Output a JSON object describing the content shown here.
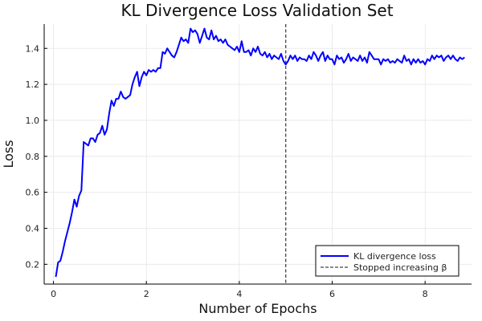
{
  "chart_data": {
    "type": "line",
    "title": "KL Divergence Loss Validation Set",
    "xlabel": "Number of Epochs",
    "ylabel": "Loss",
    "xlim": [
      -0.2,
      9.0
    ],
    "ylim": [
      0.09,
      1.535
    ],
    "xticks": [
      0,
      2,
      4,
      6,
      8
    ],
    "yticks": [
      0.2,
      0.4,
      0.6,
      0.8,
      1.0,
      1.2,
      1.4
    ],
    "ytick_labels": [
      "0.2",
      "0.4",
      "0.6",
      "0.8",
      "1.0",
      "1.2",
      "1.4"
    ],
    "grid": true,
    "legend_position": "bottom-right",
    "series": [
      {
        "name": "KL divergence loss",
        "color": "#0000ff",
        "style": "solid",
        "x": [
          0.05,
          0.1,
          0.15,
          0.2,
          0.25,
          0.3,
          0.35,
          0.4,
          0.45,
          0.5,
          0.55,
          0.6,
          0.65,
          0.7,
          0.75,
          0.8,
          0.85,
          0.9,
          0.95,
          1.0,
          1.05,
          1.1,
          1.15,
          1.2,
          1.25,
          1.3,
          1.35,
          1.4,
          1.45,
          1.5,
          1.55,
          1.6,
          1.65,
          1.7,
          1.75,
          1.8,
          1.85,
          1.9,
          1.95,
          2.0,
          2.05,
          2.1,
          2.15,
          2.2,
          2.25,
          2.3,
          2.35,
          2.4,
          2.45,
          2.5,
          2.55,
          2.6,
          2.65,
          2.7,
          2.75,
          2.8,
          2.85,
          2.9,
          2.95,
          3.0,
          3.05,
          3.1,
          3.15,
          3.2,
          3.25,
          3.3,
          3.35,
          3.4,
          3.45,
          3.5,
          3.55,
          3.6,
          3.65,
          3.7,
          3.75,
          3.8,
          3.85,
          3.9,
          3.95,
          4.0,
          4.05,
          4.1,
          4.15,
          4.2,
          4.25,
          4.3,
          4.35,
          4.4,
          4.45,
          4.5,
          4.55,
          4.6,
          4.65,
          4.7,
          4.75,
          4.8,
          4.85,
          4.9,
          4.95,
          5.0,
          5.05,
          5.1,
          5.15,
          5.2,
          5.25,
          5.3,
          5.35,
          5.4,
          5.45,
          5.5,
          5.55,
          5.6,
          5.65,
          5.7,
          5.75,
          5.8,
          5.85,
          5.9,
          5.95,
          6.0,
          6.05,
          6.1,
          6.15,
          6.2,
          6.25,
          6.3,
          6.35,
          6.4,
          6.45,
          6.5,
          6.55,
          6.6,
          6.65,
          6.7,
          6.75,
          6.8,
          6.85,
          6.9,
          6.95,
          7.0,
          7.05,
          7.1,
          7.15,
          7.2,
          7.25,
          7.3,
          7.35,
          7.4,
          7.45,
          7.5,
          7.55,
          7.6,
          7.65,
          7.7,
          7.75,
          7.8,
          7.85,
          7.9,
          7.95,
          8.0,
          8.05,
          8.1,
          8.15,
          8.2,
          8.25,
          8.3,
          8.35,
          8.4,
          8.45,
          8.5,
          8.55,
          8.6,
          8.65,
          8.7,
          8.75,
          8.8,
          8.85
        ],
        "y": [
          0.13,
          0.21,
          0.22,
          0.27,
          0.33,
          0.38,
          0.43,
          0.49,
          0.56,
          0.52,
          0.58,
          0.61,
          0.88,
          0.87,
          0.86,
          0.9,
          0.9,
          0.88,
          0.92,
          0.93,
          0.97,
          0.92,
          0.95,
          1.04,
          1.11,
          1.08,
          1.12,
          1.12,
          1.16,
          1.13,
          1.12,
          1.13,
          1.14,
          1.2,
          1.24,
          1.27,
          1.19,
          1.24,
          1.27,
          1.25,
          1.28,
          1.27,
          1.28,
          1.27,
          1.29,
          1.29,
          1.38,
          1.37,
          1.4,
          1.38,
          1.36,
          1.35,
          1.38,
          1.42,
          1.46,
          1.44,
          1.45,
          1.43,
          1.51,
          1.49,
          1.5,
          1.48,
          1.43,
          1.47,
          1.51,
          1.46,
          1.45,
          1.5,
          1.45,
          1.47,
          1.44,
          1.45,
          1.43,
          1.45,
          1.42,
          1.41,
          1.4,
          1.39,
          1.41,
          1.38,
          1.44,
          1.38,
          1.38,
          1.39,
          1.36,
          1.4,
          1.38,
          1.41,
          1.37,
          1.36,
          1.38,
          1.35,
          1.37,
          1.34,
          1.36,
          1.35,
          1.34,
          1.37,
          1.33,
          1.31,
          1.33,
          1.36,
          1.34,
          1.36,
          1.33,
          1.35,
          1.34,
          1.34,
          1.33,
          1.36,
          1.34,
          1.38,
          1.36,
          1.33,
          1.36,
          1.38,
          1.33,
          1.36,
          1.34,
          1.34,
          1.31,
          1.36,
          1.34,
          1.35,
          1.32,
          1.34,
          1.37,
          1.33,
          1.35,
          1.34,
          1.33,
          1.36,
          1.33,
          1.35,
          1.32,
          1.38,
          1.36,
          1.34,
          1.34,
          1.34,
          1.31,
          1.34,
          1.33,
          1.34,
          1.32,
          1.33,
          1.32,
          1.34,
          1.33,
          1.32,
          1.36,
          1.33,
          1.34,
          1.31,
          1.34,
          1.32,
          1.34,
          1.32,
          1.33,
          1.31,
          1.34,
          1.33,
          1.36,
          1.34,
          1.36,
          1.35,
          1.36,
          1.33,
          1.35,
          1.36,
          1.34,
          1.36,
          1.34,
          1.33,
          1.35,
          1.34,
          1.35
        ]
      },
      {
        "name": "Stopped increasing β",
        "color": "#444444",
        "style": "dashed",
        "vline_x": 5.0
      }
    ]
  }
}
